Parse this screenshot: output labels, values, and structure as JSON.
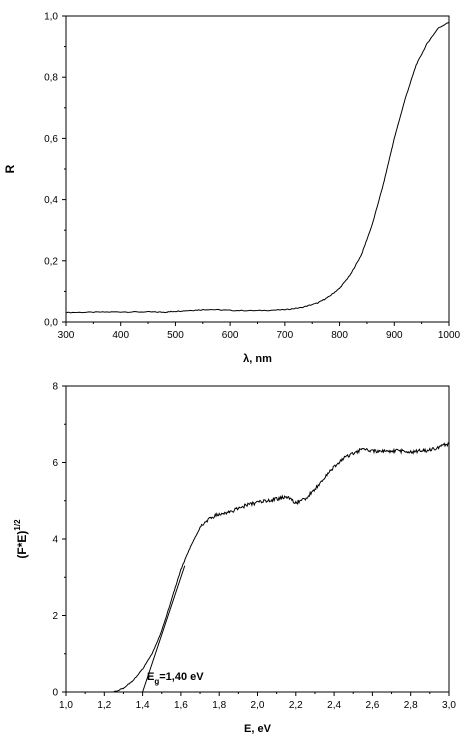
{
  "chart_data": [
    {
      "type": "line",
      "ylabel": "R",
      "xlabel_symbol": "λ",
      "xlabel_unit": ", nm",
      "xlim": [
        300,
        1000
      ],
      "ylim": [
        0.0,
        1.0
      ],
      "xticks": [
        "300",
        "400",
        "500",
        "600",
        "700",
        "800",
        "900",
        "1000"
      ],
      "yticks": [
        "0,0",
        "0,2",
        "0,4",
        "0,6",
        "0,8",
        "1,0"
      ],
      "series": [
        {
          "color": "#000000",
          "x": [
            300,
            350,
            400,
            450,
            480,
            500,
            530,
            560,
            600,
            650,
            700,
            730,
            760,
            780,
            800,
            820,
            840,
            860,
            880,
            900,
            920,
            940,
            960,
            980,
            1000
          ],
          "y": [
            0.031,
            0.032,
            0.033,
            0.033,
            0.032,
            0.035,
            0.038,
            0.041,
            0.038,
            0.037,
            0.04,
            0.047,
            0.062,
            0.082,
            0.11,
            0.155,
            0.22,
            0.32,
            0.45,
            0.6,
            0.73,
            0.84,
            0.91,
            0.96,
            0.98
          ]
        }
      ]
    },
    {
      "type": "line",
      "ylabel_base": "(F*E)",
      "ylabel_sup": "1/2",
      "xlabel": "E, eV",
      "xlim": [
        1.0,
        3.0
      ],
      "ylim": [
        0,
        8
      ],
      "xticks": [
        "1,0",
        "1,2",
        "1,4",
        "1,6",
        "1,8",
        "2,0",
        "2,2",
        "2,4",
        "2,6",
        "2,8",
        "3,0"
      ],
      "yticks": [
        "0",
        "2",
        "4",
        "6",
        "8"
      ],
      "annotation": {
        "main": "E",
        "sub": "g",
        "rest": "=1,40 eV"
      },
      "series": [
        {
          "color": "#000000",
          "x": [
            1.25,
            1.3,
            1.35,
            1.4,
            1.45,
            1.5,
            1.55,
            1.6,
            1.65,
            1.7,
            1.75,
            1.8,
            1.85,
            1.9,
            1.95,
            2.0,
            2.05,
            2.1,
            2.15,
            2.2,
            2.25,
            2.3,
            2.35,
            2.4,
            2.45,
            2.5,
            2.55,
            2.6,
            2.65,
            2.7,
            2.75,
            2.8,
            2.85,
            2.9,
            2.95,
            3.0
          ],
          "y": [
            0.0,
            0.1,
            0.3,
            0.6,
            1.0,
            1.6,
            2.4,
            3.2,
            3.8,
            4.3,
            4.55,
            4.65,
            4.7,
            4.8,
            4.9,
            4.95,
            5.0,
            5.05,
            5.1,
            4.95,
            5.05,
            5.3,
            5.6,
            5.9,
            6.1,
            6.25,
            6.35,
            6.3,
            6.3,
            6.3,
            6.3,
            6.28,
            6.3,
            6.32,
            6.4,
            6.5
          ]
        },
        {
          "name_hidden": "",
          "color": "#000000",
          "fit": true,
          "x": [
            1.4,
            1.62
          ],
          "y": [
            0.0,
            3.3
          ]
        }
      ]
    }
  ]
}
